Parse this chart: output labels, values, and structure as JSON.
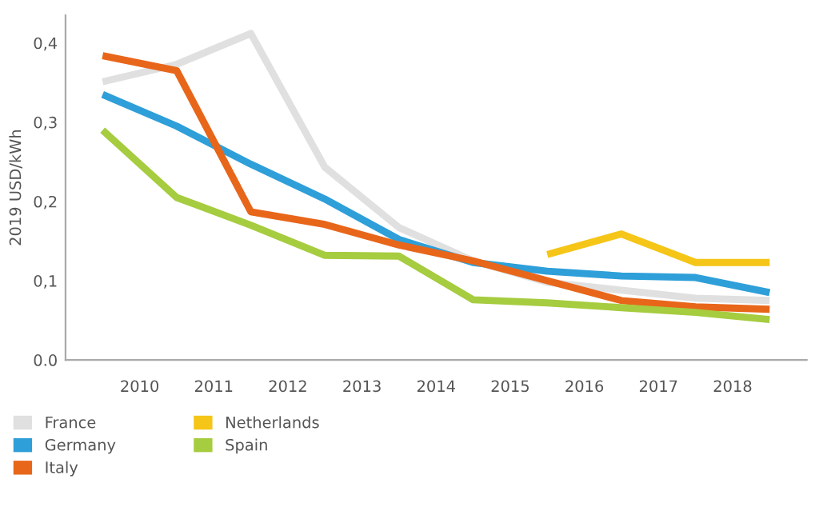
{
  "chart_data": {
    "type": "line",
    "ylabel": "2019 USD/kWh",
    "x": [
      2009.5,
      2010.5,
      2011.5,
      2012.5,
      2013.5,
      2014.5,
      2015.5,
      2016.5,
      2017.5,
      2018.5
    ],
    "series": [
      {
        "name": "France",
        "color": "#e0e0e0",
        "values": [
          0.351,
          0.373,
          0.412,
          0.243,
          0.167,
          0.125,
          0.098,
          0.088,
          0.078,
          0.075
        ]
      },
      {
        "name": "Germany",
        "color": "#2e9fd8",
        "values": [
          0.335,
          0.295,
          0.247,
          0.203,
          0.152,
          0.123,
          0.112,
          0.106,
          0.104,
          0.085
        ]
      },
      {
        "name": "Italy",
        "color": "#e8661a",
        "values": [
          0.384,
          0.365,
          0.187,
          0.171,
          0.145,
          0.125,
          0.1,
          0.075,
          0.067,
          0.064
        ]
      },
      {
        "name": "Netherlands",
        "color": "#f5c518",
        "x": [
          2015.5,
          2016.5,
          2017.5,
          2018.5
        ],
        "values": [
          0.133,
          0.159,
          0.123,
          0.123
        ]
      },
      {
        "name": "Spain",
        "color": "#a6cc3f",
        "values": [
          0.29,
          0.205,
          0.17,
          0.132,
          0.131,
          0.076,
          0.072,
          0.066,
          0.06,
          0.051
        ]
      }
    ],
    "xlim": [
      2009,
      2019
    ],
    "ylim": [
      0,
      0.435
    ],
    "xticks": [
      2010,
      2011,
      2012,
      2013,
      2014,
      2015,
      2016,
      2017,
      2018
    ],
    "yticks": [
      {
        "value": 0,
        "label": "0.0"
      },
      {
        "value": 0.1,
        "label": "0,1"
      },
      {
        "value": 0.2,
        "label": "0,2"
      },
      {
        "value": 0.3,
        "label": "0,3"
      },
      {
        "value": 0.4,
        "label": "0,4"
      }
    ],
    "grid": false,
    "legend": "bottom left",
    "marker": "none",
    "line_style": "solid"
  }
}
